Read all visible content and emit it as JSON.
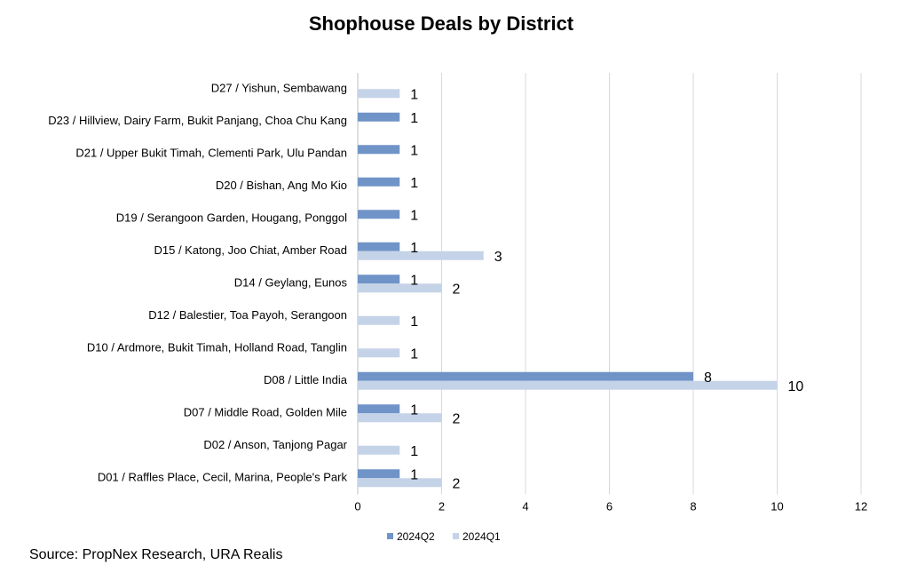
{
  "chart_data": {
    "type": "bar",
    "orientation": "horizontal",
    "title": "Shophouse Deals by District",
    "categories": [
      "D27 / Yishun, Sembawang",
      "D23 / Hillview, Dairy Farm, Bukit Panjang, Choa Chu Kang",
      "D21 / Upper Bukit Timah, Clementi Park, Ulu Pandan",
      "D20 / Bishan, Ang Mo Kio",
      "D19 / Serangoon Garden, Hougang, Ponggol",
      "D15 / Katong, Joo Chiat, Amber Road",
      "D14 / Geylang, Eunos",
      "D12 / Balestier, Toa Payoh, Serangoon",
      "D10 / Ardmore, Bukit Timah, Holland Road, Tanglin",
      "D08 / Little India",
      "D07 / Middle Road, Golden Mile",
      "D02 / Anson, Tanjong Pagar",
      "D01 / Raffles Place, Cecil, Marina, People's Park"
    ],
    "series": [
      {
        "name": "2024Q2",
        "color": "#7094c8",
        "values": [
          null,
          1,
          1,
          1,
          1,
          1,
          1,
          null,
          null,
          8,
          1,
          null,
          1
        ]
      },
      {
        "name": "2024Q1",
        "color": "#c5d3e8",
        "values": [
          1,
          null,
          null,
          null,
          null,
          3,
          2,
          1,
          1,
          10,
          2,
          1,
          2
        ]
      }
    ],
    "xlim": [
      0,
      12
    ],
    "xticks": [
      0,
      2,
      4,
      6,
      8,
      10,
      12
    ],
    "grid": true,
    "legend_position": "bottom"
  },
  "source": "Source: PropNex Research, URA Realis"
}
